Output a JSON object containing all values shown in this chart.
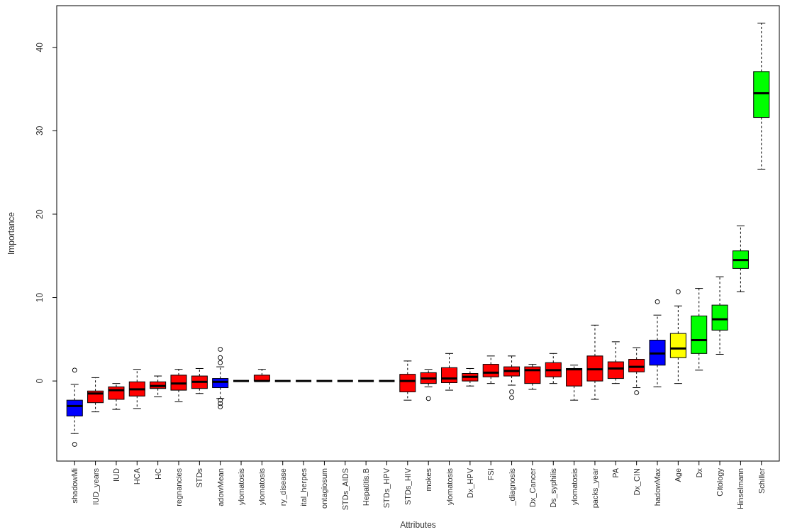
{
  "chart_data": {
    "type": "box",
    "xlabel": "Attributes",
    "ylabel": "Importance",
    "categories": [
      "shadowMi",
      "IUD_years",
      "IUD",
      "HCA",
      "HC",
      "regnancies",
      "STDs",
      "adowMean",
      "ylomatosis",
      "ylomatosis",
      "ry_disease",
      "ital_herpes",
      "ontagiosum",
      "STDs_AIDS",
      "Hepatitis.B",
      "STDs_HPV",
      "STDs_HIV",
      "mokes",
      "ylomatosis",
      "Dx_HPV",
      "FSI",
      "_diagnosis",
      "Dx_Cancer",
      "Ds_syphilis",
      "ylomatosis",
      "packs_year",
      "PA",
      "Dx_CIN",
      "hadowMax",
      "Age",
      "Dx",
      "Citology",
      "Hinselmann",
      "Schiller"
    ],
    "colors": [
      "#0000ff",
      "#ff0000",
      "#ff0000",
      "#ff0000",
      "#ff0000",
      "#ff0000",
      "#ff0000",
      "#0000ff",
      "#000000",
      "#ff0000",
      "#000000",
      "#000000",
      "#000000",
      "#000000",
      "#000000",
      "#000000",
      "#ff0000",
      "#ff0000",
      "#ff0000",
      "#ff0000",
      "#ff0000",
      "#ff0000",
      "#ff0000",
      "#ff0000",
      "#ff0000",
      "#ff0000",
      "#ff0000",
      "#ff0000",
      "#0000ff",
      "#ffff00",
      "#00ff00",
      "#00ff00",
      "#00ff00",
      "#00ff00"
    ],
    "boxes": [
      {
        "low": -6.3,
        "q1": -4.2,
        "median": -3.0,
        "q3": -2.3,
        "high": -0.4,
        "outliers": [
          1.3,
          -7.6
        ]
      },
      {
        "low": -3.7,
        "q1": -2.6,
        "median": -1.5,
        "q3": -1.2,
        "high": 0.4
      },
      {
        "low": -3.4,
        "q1": -2.2,
        "median": -1.1,
        "q3": -0.7,
        "high": -0.3
      },
      {
        "low": -3.3,
        "q1": -1.8,
        "median": -1.0,
        "q3": -0.1,
        "high": 1.4
      },
      {
        "low": -1.9,
        "q1": -0.9,
        "median": -0.6,
        "q3": -0.1,
        "high": 0.6
      },
      {
        "low": -2.5,
        "q1": -1.1,
        "median": -0.3,
        "q3": 0.7,
        "high": 1.4
      },
      {
        "low": -1.5,
        "q1": -0.9,
        "median": -0.1,
        "q3": 0.6,
        "high": 1.5
      },
      {
        "low": -2.1,
        "q1": -0.8,
        "median": -0.1,
        "q3": 0.3,
        "high": 1.7,
        "outliers": [
          3.8,
          2.8,
          2.2,
          -2.3,
          -2.7,
          -3.1
        ]
      },
      {
        "low": 0,
        "q1": 0,
        "median": 0,
        "q3": 0,
        "high": 0
      },
      {
        "low": 0,
        "q1": 0,
        "median": 0,
        "q3": 0.7,
        "high": 1.4
      },
      {
        "low": 0,
        "q1": 0,
        "median": 0,
        "q3": 0,
        "high": 0
      },
      {
        "low": 0,
        "q1": 0,
        "median": 0,
        "q3": 0,
        "high": 0
      },
      {
        "low": 0,
        "q1": 0,
        "median": 0,
        "q3": 0,
        "high": 0
      },
      {
        "low": 0,
        "q1": 0,
        "median": 0,
        "q3": 0,
        "high": 0
      },
      {
        "low": 0,
        "q1": 0,
        "median": 0,
        "q3": 0,
        "high": 0
      },
      {
        "low": 0,
        "q1": 0,
        "median": 0,
        "q3": 0,
        "high": 0
      },
      {
        "low": -2.3,
        "q1": -1.3,
        "median": 0.0,
        "q3": 0.8,
        "high": 2.4
      },
      {
        "low": -0.7,
        "q1": -0.3,
        "median": 0.3,
        "q3": 1.0,
        "high": 1.4,
        "outliers": [
          -2.1
        ]
      },
      {
        "low": -1.1,
        "q1": -0.2,
        "median": 0.3,
        "q3": 1.6,
        "high": 3.3
      },
      {
        "low": -0.6,
        "q1": 0.0,
        "median": 0.5,
        "q3": 0.9,
        "high": 1.5
      },
      {
        "low": -0.3,
        "q1": 0.5,
        "median": 1.0,
        "q3": 2.0,
        "high": 3.0
      },
      {
        "low": -0.5,
        "q1": 0.6,
        "median": 1.2,
        "q3": 1.7,
        "high": 3.0,
        "outliers": [
          -1.3,
          -2.0
        ]
      },
      {
        "low": -1.0,
        "q1": -0.3,
        "median": 1.3,
        "q3": 1.7,
        "high": 2.0
      },
      {
        "low": -0.3,
        "q1": 0.5,
        "median": 1.3,
        "q3": 2.2,
        "high": 3.3
      },
      {
        "low": -2.3,
        "q1": -0.6,
        "median": 1.4,
        "q3": 1.5,
        "high": 1.9
      },
      {
        "low": -2.2,
        "q1": 0.0,
        "median": 1.4,
        "q3": 3.0,
        "high": 6.7
      },
      {
        "low": -0.3,
        "q1": 0.3,
        "median": 1.5,
        "q3": 2.3,
        "high": 4.7
      },
      {
        "low": -0.8,
        "q1": 1.1,
        "median": 1.7,
        "q3": 2.6,
        "high": 4.0,
        "outliers": [
          -1.4
        ]
      },
      {
        "low": -0.7,
        "q1": 1.9,
        "median": 3.3,
        "q3": 4.9,
        "high": 7.9,
        "outliers": [
          9.5
        ]
      },
      {
        "low": -0.3,
        "q1": 2.8,
        "median": 3.9,
        "q3": 5.7,
        "high": 9.0,
        "outliers": [
          10.7
        ]
      },
      {
        "low": 1.3,
        "q1": 3.3,
        "median": 4.9,
        "q3": 7.8,
        "high": 11.1
      },
      {
        "low": 3.2,
        "q1": 6.1,
        "median": 7.4,
        "q3": 9.1,
        "high": 12.5
      },
      {
        "low": 10.7,
        "q1": 13.5,
        "median": 14.5,
        "q3": 15.6,
        "high": 18.6
      },
      {
        "low": 25.4,
        "q1": 31.6,
        "median": 34.5,
        "q3": 37.1,
        "high": 42.9
      }
    ],
    "ylim": [
      -9.6,
      45
    ],
    "yticks": [
      0,
      10,
      20,
      30,
      40
    ]
  }
}
